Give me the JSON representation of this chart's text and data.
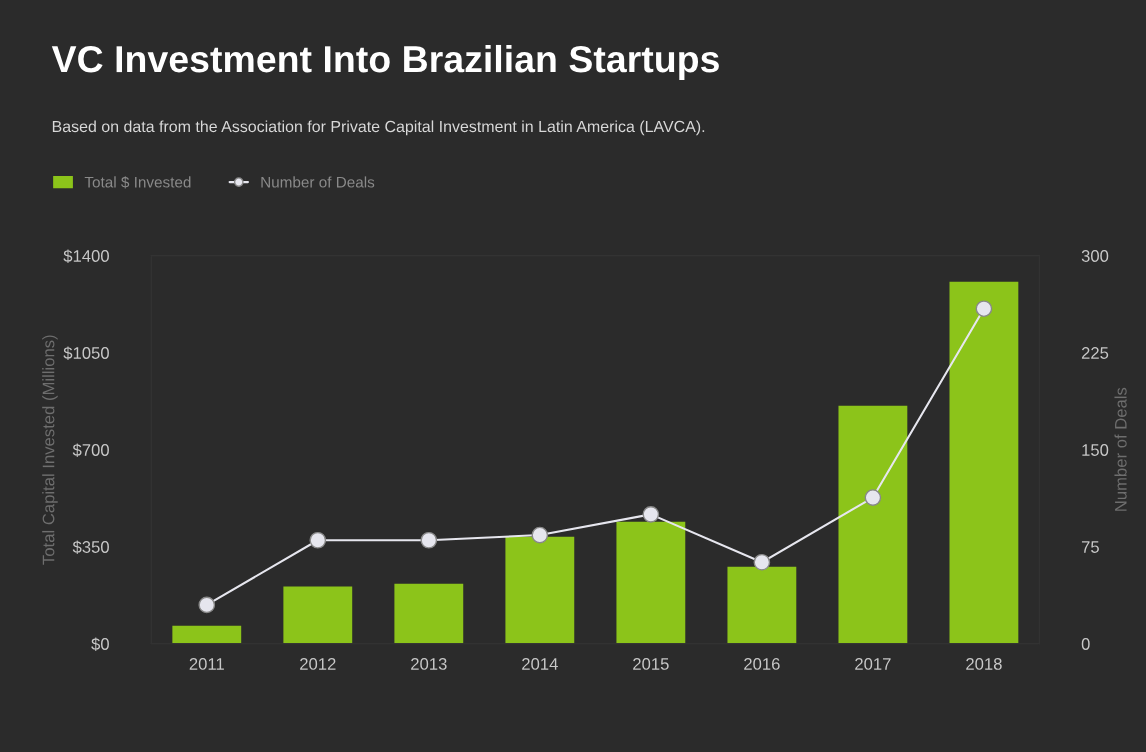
{
  "chart_data": {
    "type": "bar",
    "title": "VC Investment Into Brazilian Startups",
    "subtitle": "Based on data from the Association for Private Capital Investment in Latin America (LAVCA).",
    "categories": [
      "2011",
      "2012",
      "2013",
      "2014",
      "2015",
      "2016",
      "2017",
      "2018"
    ],
    "series": [
      {
        "name": "Total $ Invested",
        "color": "#8cc41a",
        "values": [
          65,
          206,
          216,
          386,
          440,
          278,
          859,
          1306
        ]
      },
      {
        "name": "Number of Deals",
        "type": "line",
        "axis": "y2",
        "color": "#e6e6ee",
        "marker": "circle",
        "values": [
          30,
          80,
          80,
          84,
          100,
          63,
          113,
          259
        ]
      }
    ],
    "ylabel": "Total Capital Invested (Millions)",
    "y2label": "Number of Deals",
    "ylim": [
      0,
      1400
    ],
    "yticks": [
      {
        "value": 0,
        "label": "$0"
      },
      {
        "value": 350,
        "label": "$350"
      },
      {
        "value": 700,
        "label": "$700"
      },
      {
        "value": 1050,
        "label": "$1050"
      },
      {
        "value": 1400,
        "label": "$1400"
      }
    ],
    "y2lim": [
      0,
      300
    ],
    "y2ticks": [
      0,
      75,
      150,
      225,
      300
    ],
    "legend": "top left",
    "grid": false
  }
}
